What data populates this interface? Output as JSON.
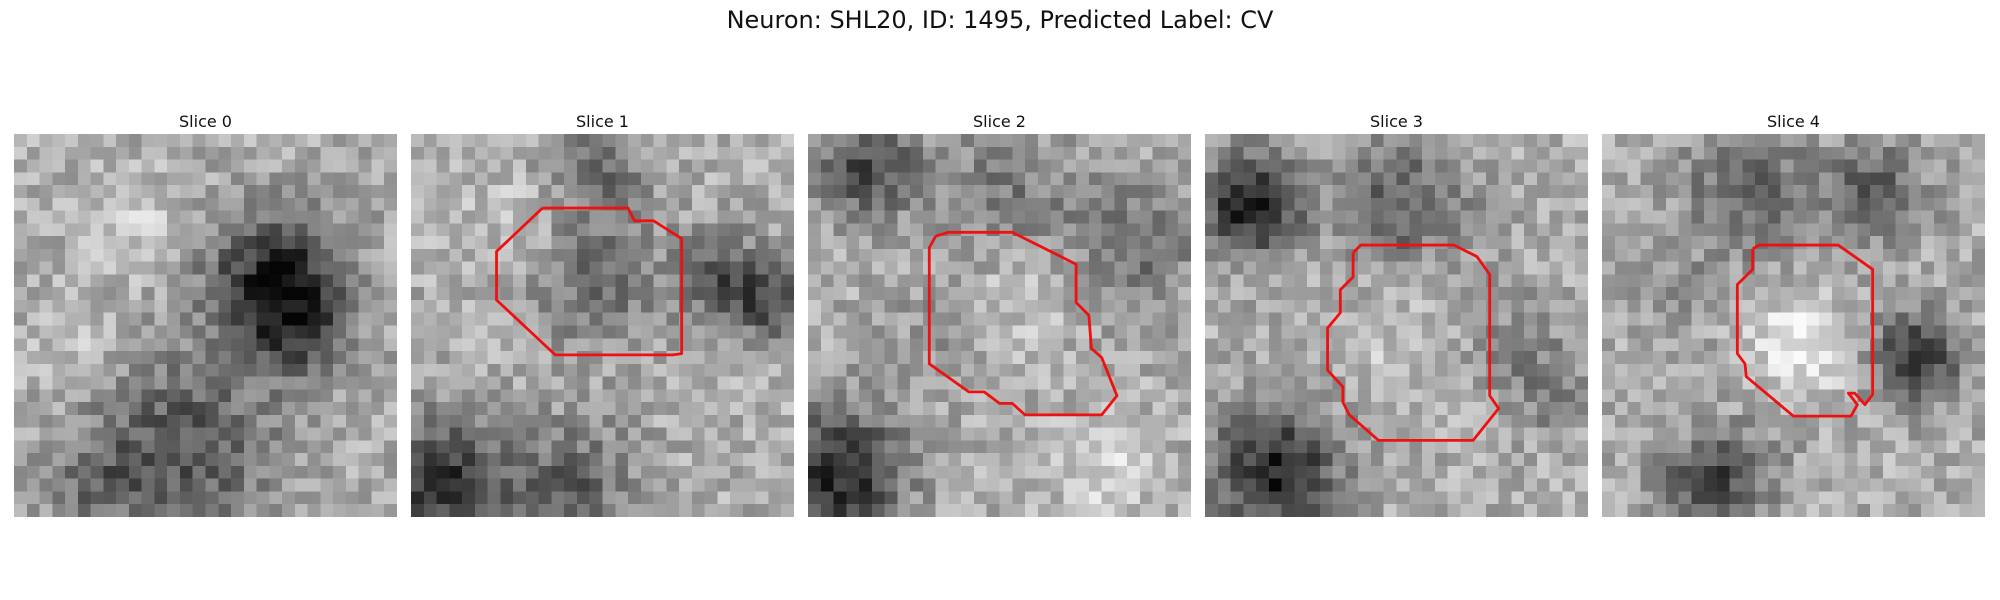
{
  "figure": {
    "title": "Neuron: SHL20, ID: 1495, Predicted Label: CV"
  },
  "panels": [
    {
      "title": "Slice 0",
      "has_contour": false
    },
    {
      "title": "Slice 1",
      "has_contour": true
    },
    {
      "title": "Slice 2",
      "has_contour": true
    },
    {
      "title": "Slice 3",
      "has_contour": true
    },
    {
      "title": "Slice 4",
      "has_contour": true
    }
  ],
  "colors": {
    "contour": "#ee1111",
    "background": "#ffffff"
  }
}
